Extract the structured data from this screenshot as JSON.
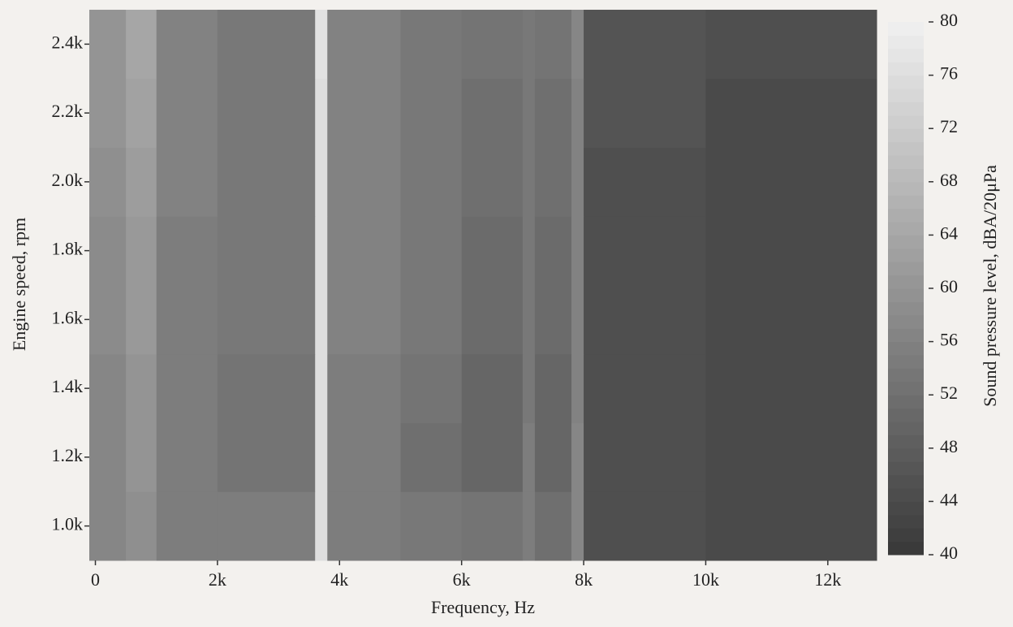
{
  "chart_data": {
    "type": "heatmap",
    "xlabel": "Frequency, Hz",
    "ylabel": "Engine speed, rpm",
    "colorbar_label": "Sound pressure level, dBA/20μPa",
    "x_bins": [
      -100,
      500,
      1000,
      2000,
      3600,
      3800,
      5000,
      6000,
      7000,
      7200,
      7800,
      8000,
      10000,
      12800
    ],
    "y_bins": [
      900,
      1100,
      1300,
      1500,
      1700,
      1900,
      2100,
      2300,
      2500
    ],
    "values": [
      [
        57,
        59,
        55,
        55,
        76,
        55,
        54,
        53,
        55,
        52,
        57,
        45,
        44
      ],
      [
        57,
        60,
        55,
        53,
        76,
        55,
        52,
        50,
        55,
        50,
        57,
        45,
        44
      ],
      [
        57,
        60,
        55,
        53,
        76,
        55,
        53,
        50,
        54,
        50,
        56,
        45,
        44
      ],
      [
        58,
        61,
        55,
        54,
        76,
        56,
        54,
        51,
        54,
        51,
        56,
        45,
        44
      ],
      [
        58,
        61,
        55,
        54,
        76,
        56,
        54,
        51,
        54,
        51,
        56,
        45,
        44
      ],
      [
        59,
        62,
        56,
        54,
        76,
        56,
        54,
        52,
        54,
        52,
        56,
        45,
        44
      ],
      [
        60,
        63,
        56,
        54,
        76,
        56,
        54,
        52,
        54,
        52,
        56,
        46,
        44
      ],
      [
        60,
        64,
        56,
        54,
        77,
        56,
        54,
        53,
        54,
        53,
        57,
        46,
        45
      ]
    ],
    "xlim": [
      -100,
      12800
    ],
    "ylim": [
      900,
      2500
    ],
    "xticks": [
      0,
      {
        "value": 2000,
        "label": "2k"
      },
      {
        "value": 4000,
        "label": "4k"
      },
      {
        "value": 6000,
        "label": "6k"
      },
      {
        "value": 8000,
        "label": "8k"
      },
      {
        "value": 10000,
        "label": "10k"
      },
      {
        "value": 12000,
        "label": "12k"
      }
    ],
    "yticks": [
      {
        "value": 1000,
        "label": "1.0k"
      },
      {
        "value": 1200,
        "label": "1.2k"
      },
      {
        "value": 1400,
        "label": "1.4k"
      },
      {
        "value": 1600,
        "label": "1.6k"
      },
      {
        "value": 1800,
        "label": "1.8k"
      },
      {
        "value": 2000,
        "label": "2.0k"
      },
      {
        "value": 2200,
        "label": "2.2k"
      },
      {
        "value": 2400,
        "label": "2.4k"
      }
    ],
    "colorlim": [
      40,
      80
    ],
    "colorticks": [
      40,
      44,
      48,
      52,
      56,
      60,
      64,
      68,
      72,
      76,
      80
    ],
    "colors": [
      "#383838",
      "#f0f0f0"
    ]
  }
}
